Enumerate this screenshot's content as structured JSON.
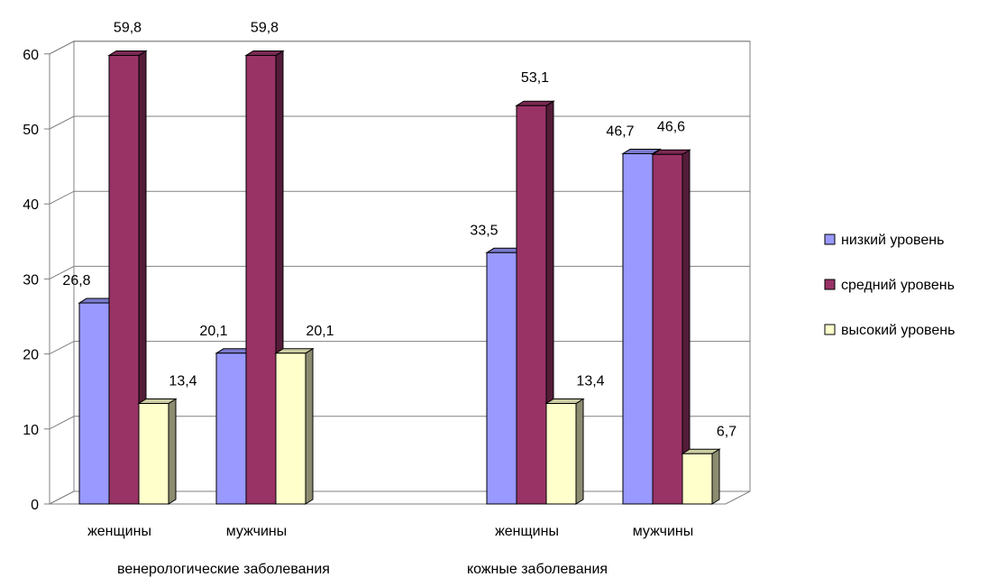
{
  "chart_data": {
    "type": "bar",
    "style": "3d-clustered-column",
    "groups": [
      {
        "label": "венерологические заболевания",
        "categories": [
          "женщины",
          "мужчины"
        ]
      },
      {
        "label": "кожные заболевания",
        "categories": [
          "женщины",
          "мужчины"
        ]
      }
    ],
    "series": [
      {
        "name": "низкий уровень",
        "color": "#9999ff",
        "values": [
          26.8,
          20.1,
          33.5,
          46.7
        ]
      },
      {
        "name": "средний уровень",
        "color": "#993366",
        "values": [
          59.8,
          59.8,
          53.1,
          46.6
        ]
      },
      {
        "name": "высокий уровень",
        "color": "#ffffcc",
        "values": [
          13.4,
          20.1,
          13.4,
          6.7
        ]
      }
    ],
    "data_labels": [
      [
        "26,8",
        "20,1",
        "33,5",
        "46,7"
      ],
      [
        "59,8",
        "59,8",
        "53,1",
        "46,6"
      ],
      [
        "13,4",
        "20,1",
        "13,4",
        "6,7"
      ]
    ],
    "ylim": [
      0,
      60
    ],
    "yticks": [
      "0",
      "10",
      "20",
      "30",
      "40",
      "50",
      "60"
    ],
    "grid": true,
    "legend_position": "right",
    "title": "",
    "xlabel": "",
    "ylabel": ""
  }
}
